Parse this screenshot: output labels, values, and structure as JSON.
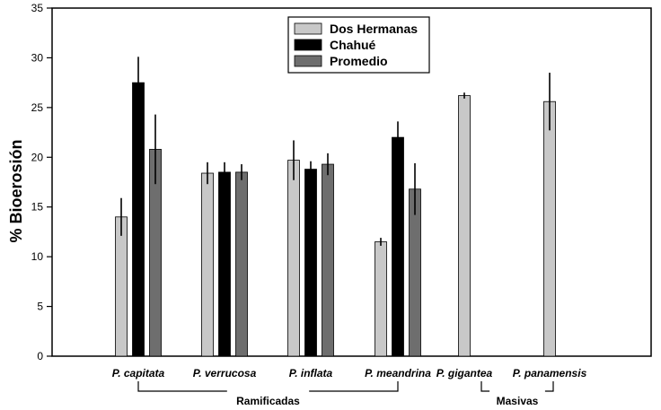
{
  "chart_data": {
    "type": "bar",
    "ylabel": "% Bioerosión",
    "ylim": [
      0,
      35
    ],
    "yticks": [
      0,
      5,
      10,
      15,
      20,
      25,
      30,
      35
    ],
    "grid": false,
    "legend_position": "top-center",
    "categories": [
      "P.  capitata",
      "P. verrucosa",
      "P. inflata",
      "P. meandrina",
      "P. gigantea",
      "P. panamensis"
    ],
    "series": [
      {
        "name": "Dos Hermanas",
        "color": "#c8c8c8",
        "values": [
          14.0,
          18.4,
          19.7,
          11.5,
          26.2,
          25.6
        ],
        "errors": [
          1.9,
          1.1,
          2.0,
          0.4,
          0.3,
          2.9
        ]
      },
      {
        "name": "Chahué",
        "color": "#000000",
        "values": [
          27.5,
          18.5,
          18.8,
          22.0,
          null,
          null
        ],
        "errors": [
          2.6,
          1.0,
          0.8,
          1.6,
          null,
          null
        ]
      },
      {
        "name": "Promedio",
        "color": "#6e6e6e",
        "values": [
          20.8,
          18.5,
          19.3,
          16.8,
          null,
          null
        ],
        "errors": [
          3.5,
          0.8,
          1.1,
          2.6,
          null,
          null
        ]
      }
    ],
    "groups": [
      {
        "label": "Ramificadas",
        "categories": [
          "P.  capitata",
          "P. verrucosa",
          "P. inflata",
          "P. meandrina"
        ]
      },
      {
        "label": "Masivas",
        "categories": [
          "P. gigantea",
          "P. panamensis"
        ]
      }
    ]
  }
}
